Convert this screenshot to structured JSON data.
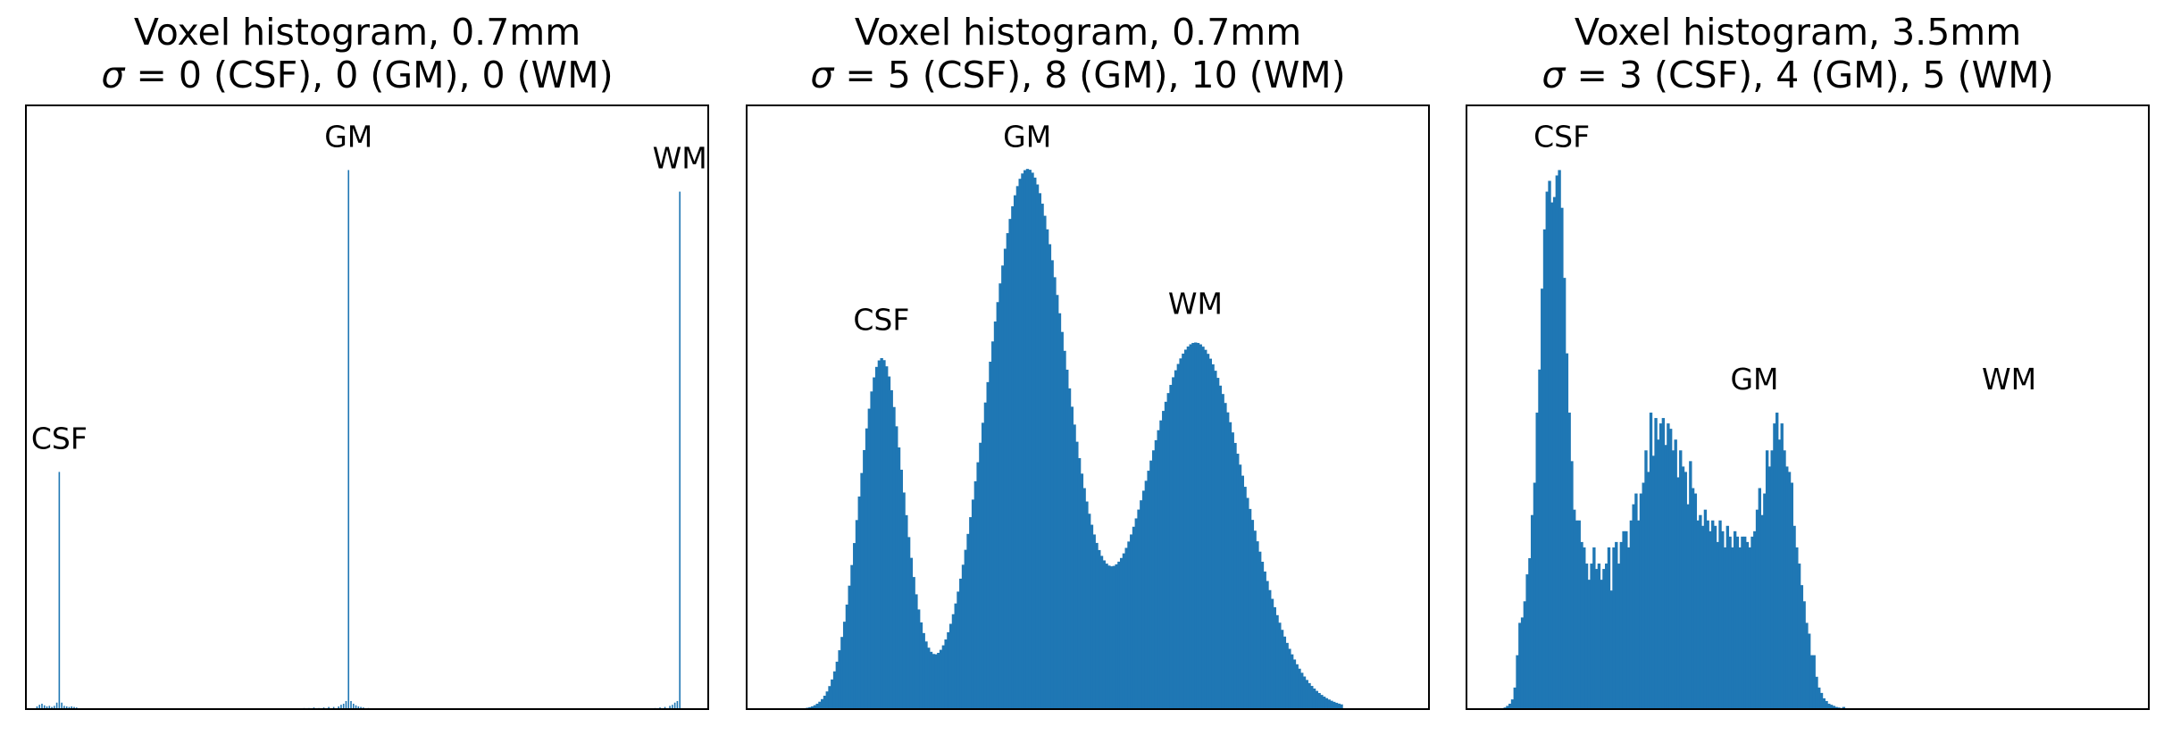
{
  "chart_data": [
    {
      "type": "bar",
      "title": "Voxel histogram, 0.7mm",
      "subtitle_symbol": "σ",
      "subtitle_rest": " = 0 (CSF), 0 (GM), 0 (WM)",
      "color": "#1f77b4",
      "ylim": [
        0,
        1.12
      ],
      "n_bins": 256,
      "peaks": [
        {
          "label": "CSF",
          "bin": 13,
          "value": 0.44
        },
        {
          "label": "GM",
          "bin": 130,
          "value": 1.0
        },
        {
          "label": "WM",
          "bin": 264,
          "value": 0.96
        }
      ],
      "bins": [
        [
          4,
          0.005
        ],
        [
          5,
          0.008
        ],
        [
          6,
          0.01
        ],
        [
          7,
          0.007
        ],
        [
          8,
          0.005
        ],
        [
          9,
          0.006
        ],
        [
          10,
          0.004
        ],
        [
          11,
          0.006
        ],
        [
          12,
          0.012
        ],
        [
          13,
          0.44
        ],
        [
          14,
          0.012
        ],
        [
          15,
          0.006
        ],
        [
          16,
          0.005
        ],
        [
          17,
          0.004
        ],
        [
          18,
          0.005
        ],
        [
          19,
          0.004
        ],
        [
          20,
          0.003
        ],
        [
          112,
          0.002
        ],
        [
          114,
          0.002
        ],
        [
          116,
          0.003
        ],
        [
          118,
          0.002
        ],
        [
          120,
          0.003
        ],
        [
          122,
          0.004
        ],
        [
          124,
          0.004
        ],
        [
          126,
          0.005
        ],
        [
          127,
          0.008
        ],
        [
          128,
          0.01
        ],
        [
          129,
          0.015
        ],
        [
          130,
          1.0
        ],
        [
          131,
          0.015
        ],
        [
          132,
          0.01
        ],
        [
          133,
          0.007
        ],
        [
          134,
          0.005
        ],
        [
          135,
          0.004
        ],
        [
          136,
          0.003
        ],
        [
          138,
          0.002
        ],
        [
          254,
          0.002
        ],
        [
          256,
          0.003
        ],
        [
          258,
          0.004
        ],
        [
          260,
          0.006
        ],
        [
          261,
          0.008
        ],
        [
          262,
          0.012
        ],
        [
          263,
          0.015
        ],
        [
          264,
          0.96
        ]
      ]
    },
    {
      "type": "bar",
      "title": "Voxel histogram, 0.7mm",
      "subtitle_symbol": "σ",
      "subtitle_rest": " = 5 (CSF), 8 (GM), 10 (WM)",
      "color": "#1f77b4",
      "ylim": [
        0,
        1.12
      ],
      "n_bins": 256,
      "peaks": [
        {
          "label": "CSF",
          "bin": 54,
          "value": 0.66
        },
        {
          "label": "GM",
          "bin": 113,
          "value": 1.0
        },
        {
          "label": "WM",
          "bin": 181,
          "value": 0.69
        }
      ],
      "curve": {
        "x0": 20,
        "x1": 240,
        "step": 1,
        "components": [
          {
            "mu": 54,
            "sigma": 9,
            "amp": 0.65
          },
          {
            "mu": 113,
            "sigma": 16,
            "amp": 1.0
          },
          {
            "mu": 181,
            "sigma": 20,
            "amp": 0.68
          }
        ]
      }
    },
    {
      "type": "bar",
      "title": "Voxel histogram, 3.5mm",
      "subtitle_symbol": "σ",
      "subtitle_rest": " = 3 (CSF), 4 (GM), 5 (WM)",
      "color": "#1f77b4",
      "ylim": [
        0,
        1.12
      ],
      "n_bins": 256,
      "peaks": [
        {
          "label": "CSF",
          "bin": 38,
          "value": 1.0
        },
        {
          "label": "GM",
          "bin": 116,
          "value": 0.55
        },
        {
          "label": "WM",
          "bin": 219,
          "value": 0.55
        }
      ],
      "values": [
        0,
        0,
        0,
        0,
        0,
        0,
        0.003,
        0.006,
        0.01,
        0.018,
        0.04,
        0.1,
        0.16,
        0.17,
        0.2,
        0.25,
        0.28,
        0.36,
        0.42,
        0.55,
        0.63,
        0.78,
        0.89,
        0.96,
        0.98,
        0.94,
        0.95,
        0.99,
        1.0,
        0.93,
        0.8,
        0.66,
        0.55,
        0.46,
        0.37,
        0.35,
        0.35,
        0.31,
        0.3,
        0.27,
        0.24,
        0.27,
        0.3,
        0.26,
        0.27,
        0.24,
        0.26,
        0.27,
        0.3,
        0.22,
        0.3,
        0.31,
        0.27,
        0.31,
        0.33,
        0.33,
        0.3,
        0.35,
        0.38,
        0.4,
        0.35,
        0.4,
        0.42,
        0.48,
        0.44,
        0.55,
        0.47,
        0.54,
        0.5,
        0.53,
        0.54,
        0.49,
        0.53,
        0.52,
        0.48,
        0.5,
        0.43,
        0.48,
        0.45,
        0.44,
        0.38,
        0.46,
        0.41,
        0.4,
        0.35,
        0.36,
        0.34,
        0.37,
        0.35,
        0.33,
        0.35,
        0.34,
        0.31,
        0.35,
        0.33,
        0.3,
        0.34,
        0.32,
        0.3,
        0.33,
        0.32,
        0.3,
        0.32,
        0.32,
        0.31,
        0.3,
        0.32,
        0.33,
        0.37,
        0.41,
        0.36,
        0.4,
        0.48,
        0.45,
        0.48,
        0.53,
        0.55,
        0.5,
        0.53,
        0.48,
        0.45,
        0.44,
        0.42,
        0.34,
        0.3,
        0.27,
        0.23,
        0.2,
        0.16,
        0.14,
        0.1,
        0.1,
        0.06,
        0.04,
        0.03,
        0.02,
        0.015,
        0.01,
        0.008,
        0.006,
        0.004,
        0.003,
        0.002,
        0.004,
        0.001,
        0.001,
        0,
        0
      ]
    }
  ]
}
